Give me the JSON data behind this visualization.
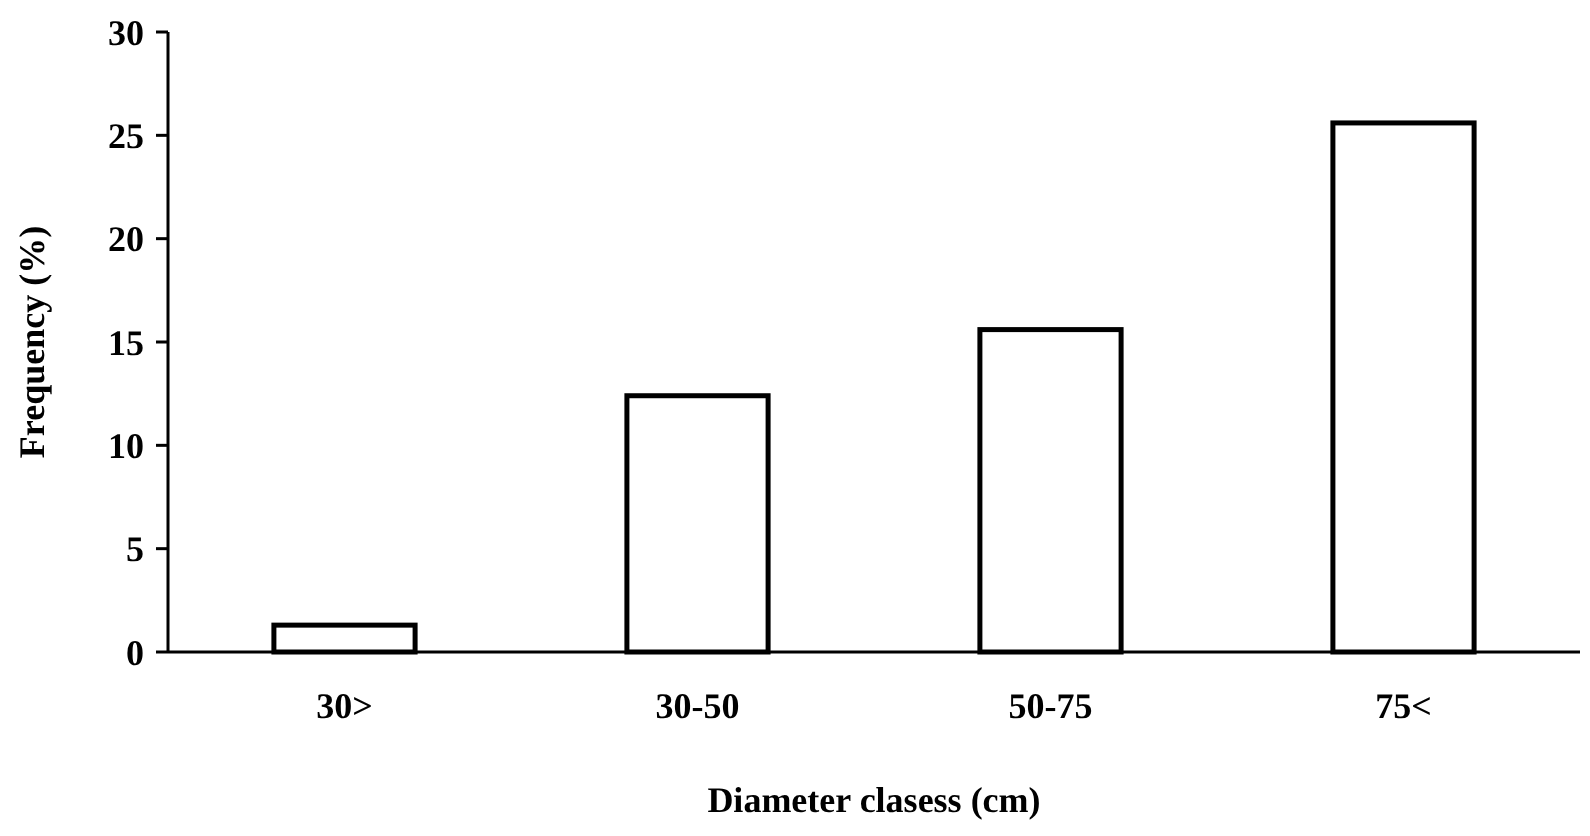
{
  "chart_data": {
    "type": "bar",
    "xlabel": "Diameter clasess (cm)",
    "ylabel": "Frequency (%)",
    "categories": [
      "30>",
      "30-50",
      "50-75",
      "75<"
    ],
    "values": [
      1.3,
      12.4,
      15.6,
      25.6
    ],
    "color": "#ffffff",
    "ylim": [
      0,
      30
    ],
    "yticks": [
      0,
      5,
      10,
      15,
      20,
      25,
      30
    ],
    "grid": false
  }
}
